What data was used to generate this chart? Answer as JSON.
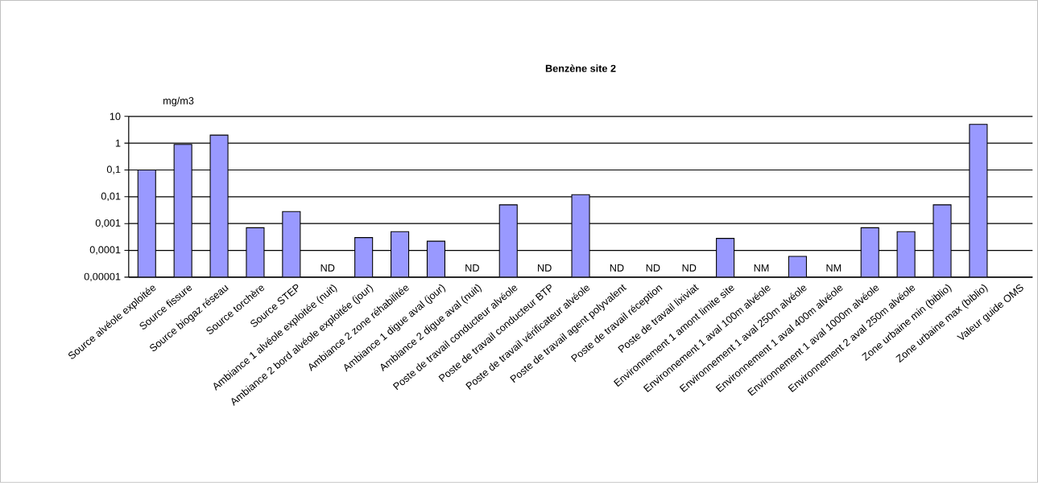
{
  "chart_data": {
    "type": "bar",
    "title": "Benzène site 2",
    "ylabel": "mg/m3",
    "categories": [
      "Source alvéole exploitée",
      "Source fissure",
      "Source biogaz réseau",
      "Source torchère",
      "Source STEP",
      "Ambiance 1 alvéole exploitée (nuit)",
      "Ambiance 2 bord alvéole exploitée (jour)",
      "Ambiance 2 zone réhabilitée",
      "Ambiance 1 digue aval (jour)",
      "Ambiance 2 digue aval (nuit)",
      "Poste de travail conducteur alvéole",
      "Poste de travail conducteur BTP",
      "Poste de travail vérificateur alvéole",
      "Poste de travail agent polyvalent",
      "Poste de travail réception",
      "Poste de travail lixiviat",
      "Environnement 1 amont limite site",
      "Environnement 1 aval 100m alvéole",
      "Environnement 1 aval 250m alvéole",
      "Environnement 1 aval 400m alvéole",
      "Environnement 1 aval 1000m alvéole",
      "Environnement 2 aval 250m alvéole",
      "Zone urbaine min (biblio)",
      "Zone urbaine max (biblio)",
      "Valeur guide OMS"
    ],
    "values": [
      0.1,
      0.9,
      2,
      0.0007,
      0.0028,
      null,
      0.0003,
      0.0005,
      0.00022,
      null,
      0.005,
      null,
      0.012,
      null,
      null,
      null,
      0.00028,
      null,
      6e-05,
      null,
      0.0007,
      0.0005,
      0.005,
      5,
      null
    ],
    "color": "#9999ff",
    "log": true,
    "ylim": [
      1e-05,
      10
    ],
    "yticks": [
      {
        "value": 1e-05,
        "label": "0,00001"
      },
      {
        "value": 0.0001,
        "label": "0,0001"
      },
      {
        "value": 0.001,
        "label": "0,001"
      },
      {
        "value": 0.01,
        "label": "0,01"
      },
      {
        "value": 0.1,
        "label": "0,1"
      },
      1,
      10
    ],
    "grid": "y",
    "annotations": [
      "ND",
      "ND",
      "ND",
      "ND",
      "ND",
      "ND",
      "NM",
      "NM"
    ]
  }
}
